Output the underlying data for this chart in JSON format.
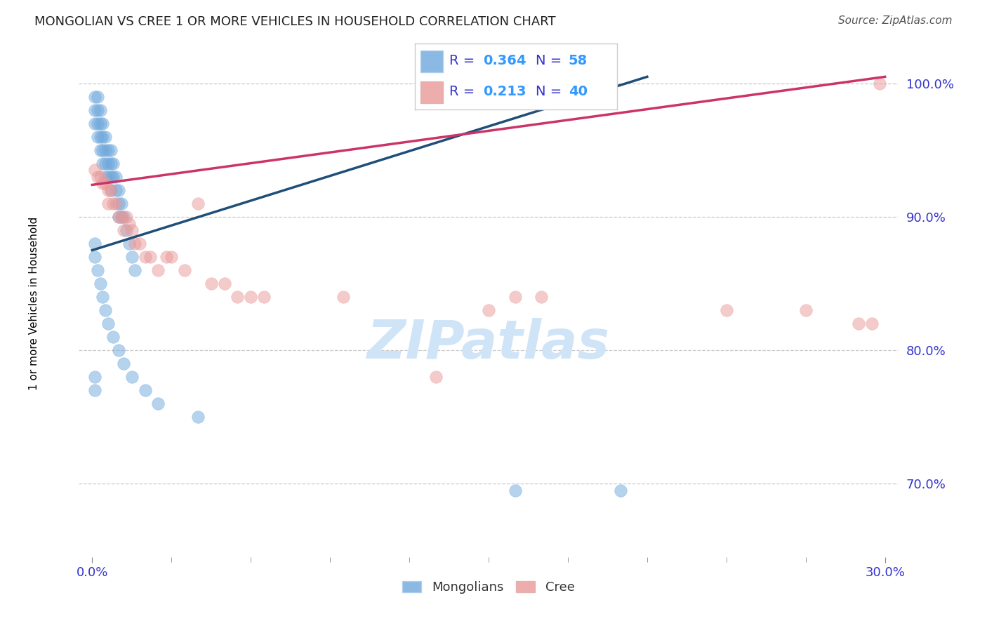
{
  "title": "MONGOLIAN VS CREE 1 OR MORE VEHICLES IN HOUSEHOLD CORRELATION CHART",
  "source": "Source: ZipAtlas.com",
  "ylabel": "1 or more Vehicles in Household",
  "ylabel_ticks": [
    "100.0%",
    "90.0%",
    "80.0%",
    "70.0%"
  ],
  "ylabel_tick_values": [
    1.0,
    0.9,
    0.8,
    0.7
  ],
  "xlim": [
    0.0,
    0.3
  ],
  "ylim": [
    0.645,
    1.025
  ],
  "mongolian_color": "#6fa8dc",
  "cree_color": "#ea9999",
  "mongolian_line_color": "#1f4e79",
  "cree_line_color": "#cc3366",
  "watermark_color": "#d0e4f7",
  "tick_label_color": "#3333cc",
  "mongolian_x": [
    0.001,
    0.001,
    0.001,
    0.002,
    0.002,
    0.002,
    0.002,
    0.003,
    0.003,
    0.003,
    0.003,
    0.004,
    0.004,
    0.004,
    0.004,
    0.005,
    0.005,
    0.005,
    0.005,
    0.006,
    0.006,
    0.006,
    0.007,
    0.007,
    0.007,
    0.007,
    0.008,
    0.008,
    0.009,
    0.009,
    0.01,
    0.01,
    0.01,
    0.011,
    0.011,
    0.012,
    0.013,
    0.014,
    0.015,
    0.016,
    0.001,
    0.001,
    0.002,
    0.003,
    0.004,
    0.005,
    0.006,
    0.008,
    0.01,
    0.012,
    0.001,
    0.001,
    0.015,
    0.02,
    0.025,
    0.04,
    0.16,
    0.2
  ],
  "mongolian_y": [
    0.99,
    0.98,
    0.97,
    0.99,
    0.98,
    0.97,
    0.96,
    0.98,
    0.97,
    0.96,
    0.95,
    0.97,
    0.96,
    0.95,
    0.94,
    0.96,
    0.95,
    0.94,
    0.93,
    0.95,
    0.94,
    0.93,
    0.95,
    0.94,
    0.93,
    0.92,
    0.94,
    0.93,
    0.93,
    0.92,
    0.92,
    0.91,
    0.9,
    0.91,
    0.9,
    0.9,
    0.89,
    0.88,
    0.87,
    0.86,
    0.88,
    0.87,
    0.86,
    0.85,
    0.84,
    0.83,
    0.82,
    0.81,
    0.8,
    0.79,
    0.78,
    0.77,
    0.78,
    0.77,
    0.76,
    0.75,
    0.695,
    0.695
  ],
  "cree_x": [
    0.001,
    0.002,
    0.003,
    0.004,
    0.005,
    0.006,
    0.006,
    0.007,
    0.008,
    0.009,
    0.01,
    0.011,
    0.012,
    0.013,
    0.014,
    0.015,
    0.016,
    0.018,
    0.02,
    0.022,
    0.025,
    0.028,
    0.03,
    0.035,
    0.04,
    0.045,
    0.05,
    0.055,
    0.06,
    0.065,
    0.095,
    0.13,
    0.15,
    0.16,
    0.17,
    0.24,
    0.27,
    0.29,
    0.295,
    0.298
  ],
  "cree_y": [
    0.935,
    0.93,
    0.93,
    0.925,
    0.925,
    0.92,
    0.91,
    0.92,
    0.91,
    0.91,
    0.9,
    0.9,
    0.89,
    0.9,
    0.895,
    0.89,
    0.88,
    0.88,
    0.87,
    0.87,
    0.86,
    0.87,
    0.87,
    0.86,
    0.91,
    0.85,
    0.85,
    0.84,
    0.84,
    0.84,
    0.84,
    0.78,
    0.83,
    0.84,
    0.84,
    0.83,
    0.83,
    0.82,
    0.82,
    1.0
  ],
  "mongo_line_x": [
    0.0,
    0.21
  ],
  "mongo_line_y": [
    0.875,
    1.005
  ],
  "cree_line_x": [
    0.0,
    0.3
  ],
  "cree_line_y": [
    0.924,
    1.005
  ]
}
